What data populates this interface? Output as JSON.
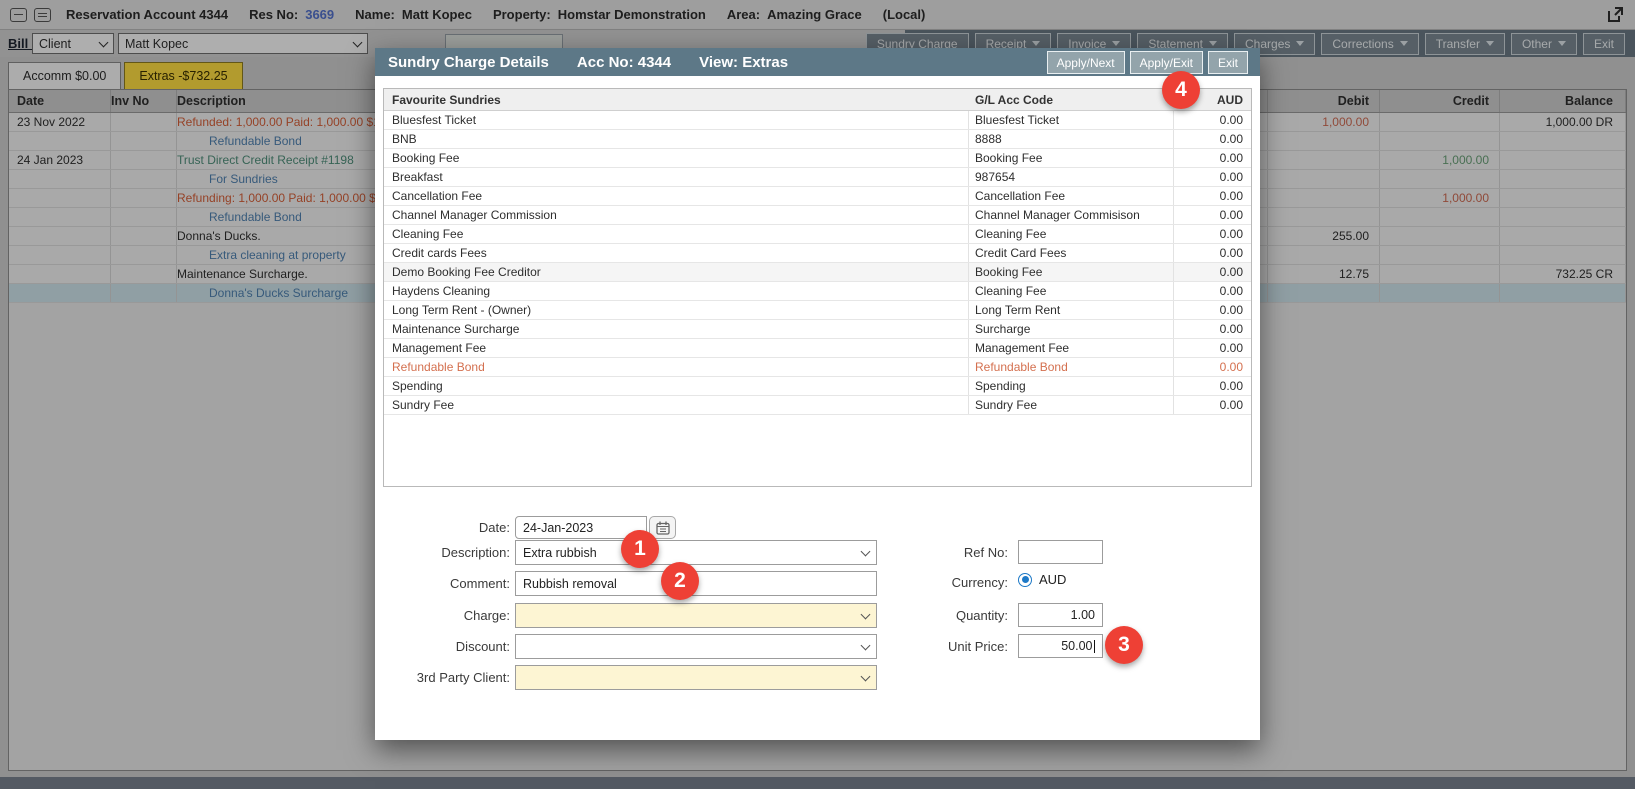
{
  "colors": {
    "modal_header": "#5d7887",
    "badge_red": "#ee4035",
    "tab_active_yellow": "#ffdf43",
    "field_yellow": "#fdf5d3",
    "refund_orange": "#d65f38",
    "link_blue": "#4f81b0",
    "receipt_teal": "#4e8f7a",
    "radio_blue": "#1d79c7"
  },
  "header": {
    "title": "Reservation Account 4344",
    "res_no_label": "Res No:",
    "res_no": "3669",
    "name_label": "Name:",
    "name": "Matt Kopec",
    "property_label": "Property:",
    "property": "Homstar Demonstration",
    "area_label": "Area:",
    "area": "Amazing Grace",
    "mode": "(Local)"
  },
  "billbar": {
    "bill_to_label": "Bill To:",
    "bill_to_value": "Client",
    "account_value": "Matt Kopec",
    "toolbar_buttons": [
      {
        "label": "Sundry Charge",
        "caret": false
      },
      {
        "label": "Receipt",
        "caret": true
      },
      {
        "label": "Invoice",
        "caret": true
      },
      {
        "label": "Statement",
        "caret": true
      },
      {
        "label": "Charges",
        "caret": true
      },
      {
        "label": "Corrections",
        "caret": true
      },
      {
        "label": "Transfer",
        "caret": true
      },
      {
        "label": "Other",
        "caret": true
      },
      {
        "label": "Exit",
        "caret": false
      }
    ]
  },
  "account": {
    "tabs": [
      {
        "label": "Accomm $0.00",
        "active": false
      },
      {
        "label": "Extras -$732.25",
        "active": true
      }
    ],
    "columns": {
      "date": "Date",
      "inv": "Inv No",
      "desc": "Description",
      "debit": "Debit",
      "credit": "Credit",
      "balance": "Balance"
    },
    "rows": [
      {
        "date": "23 Nov 2022",
        "inv": "",
        "desc": "Refunded: 1,000.00 Paid: 1,000.00 $1000 Refu",
        "style": "refund",
        "indent": false,
        "debit": "1,000.00",
        "debit_style": "red",
        "credit": "",
        "credit_style": "",
        "balance": "1,000.00 DR",
        "highlight": false
      },
      {
        "date": "",
        "inv": "",
        "desc": "Refundable Bond",
        "style": "link",
        "indent": true,
        "debit": "",
        "credit": "",
        "balance": "",
        "highlight": false
      },
      {
        "date": "24 Jan 2023",
        "inv": "",
        "desc": "Trust Direct Credit Receipt #1198",
        "style": "receipt",
        "indent": false,
        "debit": "",
        "credit": "1,000.00",
        "credit_style": "green",
        "balance": "",
        "highlight": false
      },
      {
        "date": "",
        "inv": "",
        "desc": "For Sundries",
        "style": "link",
        "indent": true,
        "debit": "",
        "credit": "",
        "balance": "",
        "highlight": false
      },
      {
        "date": "",
        "inv": "",
        "desc": "Refunding: 1,000.00 Paid: 1,000.00 $1000 Refu",
        "style": "refund",
        "indent": false,
        "debit": "",
        "credit": "1,000.00",
        "credit_style": "red",
        "balance": "",
        "highlight": false
      },
      {
        "date": "",
        "inv": "",
        "desc": "Refundable Bond",
        "style": "link",
        "indent": true,
        "debit": "",
        "credit": "",
        "balance": "",
        "highlight": false
      },
      {
        "date": "",
        "inv": "",
        "desc": "Donna's Ducks.",
        "style": "normal",
        "indent": false,
        "debit": "255.00",
        "debit_style": "",
        "credit": "",
        "balance": "",
        "highlight": false
      },
      {
        "date": "",
        "inv": "",
        "desc": "Extra cleaning at property",
        "style": "link",
        "indent": true,
        "debit": "",
        "credit": "",
        "balance": "",
        "highlight": false
      },
      {
        "date": "",
        "inv": "",
        "desc": "Maintenance Surcharge.",
        "style": "normal",
        "indent": false,
        "debit": "12.75",
        "debit_style": "",
        "credit": "",
        "balance": "732.25 CR",
        "highlight": false
      },
      {
        "date": "",
        "inv": "",
        "desc": "Donna's Ducks Surcharge",
        "style": "link",
        "indent": true,
        "debit": "",
        "credit": "",
        "balance": "",
        "highlight": true
      }
    ]
  },
  "modal": {
    "title": "Sundry Charge Details",
    "acc_no_label": "Acc No:",
    "acc_no": "4344",
    "view_label": "View:",
    "view": "Extras",
    "buttons": [
      "Apply/Next",
      "Apply/Exit",
      "Exit"
    ],
    "sundries": {
      "columns": [
        "Favourite Sundries",
        "G/L Acc Code",
        "AUD"
      ],
      "rows": [
        {
          "name": "Bluesfest Ticket",
          "code": "Bluesfest Ticket",
          "amount": "0.00",
          "style": ""
        },
        {
          "name": "BNB",
          "code": "8888",
          "amount": "0.00",
          "style": ""
        },
        {
          "name": "Booking Fee",
          "code": "Booking Fee",
          "amount": "0.00",
          "style": ""
        },
        {
          "name": "Breakfast",
          "code": "987654",
          "amount": "0.00",
          "style": ""
        },
        {
          "name": "Cancellation Fee",
          "code": "Cancellation Fee",
          "amount": "0.00",
          "style": ""
        },
        {
          "name": "Channel Manager Commission",
          "code": "Channel Manager Commisison",
          "amount": "0.00",
          "style": ""
        },
        {
          "name": "Cleaning Fee",
          "code": "Cleaning Fee",
          "amount": "0.00",
          "style": ""
        },
        {
          "name": "Credit cards Fees",
          "code": "Credit Card Fees",
          "amount": "0.00",
          "style": ""
        },
        {
          "name": "Demo Booking Fee Creditor",
          "code": "Booking Fee",
          "amount": "0.00",
          "style": "shaded"
        },
        {
          "name": "Haydens Cleaning",
          "code": "Cleaning Fee",
          "amount": "0.00",
          "style": ""
        },
        {
          "name": "Long Term Rent - (Owner)",
          "code": "Long Term Rent",
          "amount": "0.00",
          "style": ""
        },
        {
          "name": "Maintenance Surcharge",
          "code": "Surcharge",
          "amount": "0.00",
          "style": ""
        },
        {
          "name": "Management Fee",
          "code": "Management Fee",
          "amount": "0.00",
          "style": ""
        },
        {
          "name": "Refundable Bond",
          "code": "Refundable Bond",
          "amount": "0.00",
          "style": "orange"
        },
        {
          "name": "Spending",
          "code": "Spending",
          "amount": "0.00",
          "style": ""
        },
        {
          "name": "Sundry Fee",
          "code": "Sundry Fee",
          "amount": "0.00",
          "style": ""
        }
      ]
    },
    "form": {
      "date_label": "Date:",
      "date_value": "24-Jan-2023",
      "description_label": "Description:",
      "description_value": "Extra rubbish",
      "comment_label": "Comment:",
      "comment_value": "Rubbish removal",
      "charge_label": "Charge:",
      "charge_value": "",
      "discount_label": "Discount:",
      "discount_value": "",
      "third_party_label": "3rd Party Client:",
      "third_party_value": "",
      "ref_no_label": "Ref No:",
      "ref_no_value": "",
      "currency_label": "Currency:",
      "currency_option": "AUD",
      "quantity_label": "Quantity:",
      "quantity_value": "1.00",
      "unit_price_label": "Unit Price:",
      "unit_price_value": "50.00"
    }
  },
  "badges": [
    {
      "n": "1"
    },
    {
      "n": "2"
    },
    {
      "n": "3"
    },
    {
      "n": "4"
    }
  ]
}
